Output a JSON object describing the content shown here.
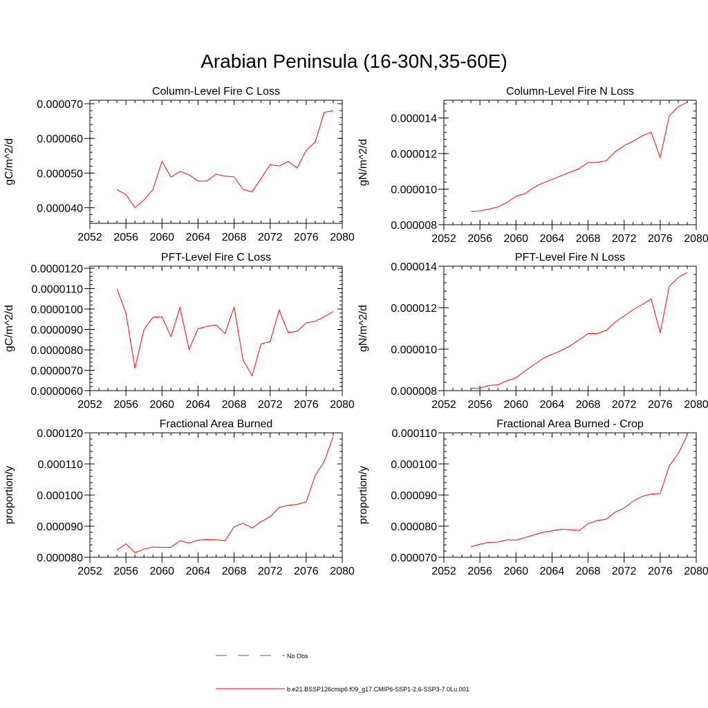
{
  "page": {
    "title": "Arabian Peninsula (16-30N,35-60E)"
  },
  "style": {
    "series_color": "#ff0000",
    "obs_color": "#5a5aa8",
    "axis_color": "#000000"
  },
  "legend": {
    "obs_label": "No Obs",
    "model_label": "b.e21.BSSP126cmip6.f09_g17.CMIP6-SSP1-2.6-SSP3-7.0Lu.001"
  },
  "chart_data": [
    {
      "type": "line",
      "title": "Column-Level Fire C Loss",
      "ylabel": "gC/m^2/d",
      "xlabel": "",
      "xlim": [
        2052,
        2080
      ],
      "ylim": [
        3.55e-05,
        7.1e-05
      ],
      "xticks": [
        2052,
        2056,
        2060,
        2064,
        2068,
        2072,
        2076,
        2080
      ],
      "xtick_labels": [
        "2052",
        "2056",
        "2060",
        "2064",
        "2068",
        "2072",
        "2076",
        "2080"
      ],
      "yticks": [
        4e-05,
        5e-05,
        6e-05,
        7e-05
      ],
      "ytick_labels": [
        "0.000040",
        "0.000050",
        "0.000060",
        "0.000070"
      ],
      "x": [
        2055,
        2056,
        2057,
        2058,
        2059,
        2060,
        2061,
        2062,
        2063,
        2064,
        2065,
        2066,
        2067,
        2068,
        2069,
        2070,
        2071,
        2072,
        2073,
        2074,
        2075,
        2076,
        2077,
        2078,
        2079
      ],
      "values": [
        4.52e-05,
        4.38e-05,
        4e-05,
        4.22e-05,
        4.53e-05,
        5.34e-05,
        4.88e-05,
        5.05e-05,
        4.95e-05,
        4.77e-05,
        4.77e-05,
        4.97e-05,
        4.91e-05,
        4.89e-05,
        4.53e-05,
        4.46e-05,
        4.85e-05,
        5.24e-05,
        5.2e-05,
        5.33e-05,
        5.15e-05,
        5.65e-05,
        5.9e-05,
        6.75e-05,
        6.8e-05
      ]
    },
    {
      "type": "line",
      "title": "Column-Level Fire N Loss",
      "ylabel": "gN/m^2/d",
      "xlabel": "",
      "xlim": [
        2052,
        2080
      ],
      "ylim": [
        8e-06,
        1.5e-05
      ],
      "xticks": [
        2052,
        2056,
        2060,
        2064,
        2068,
        2072,
        2076,
        2080
      ],
      "xtick_labels": [
        "2052",
        "2056",
        "2060",
        "2064",
        "2068",
        "2072",
        "2076",
        "2080"
      ],
      "yticks": [
        8e-06,
        1e-05,
        1.2e-05,
        1.4e-05
      ],
      "ytick_labels": [
        "0.000008",
        "0.000010",
        "0.000012",
        "0.000014"
      ],
      "x": [
        2055,
        2056,
        2057,
        2058,
        2059,
        2060,
        2061,
        2062,
        2063,
        2064,
        2065,
        2066,
        2067,
        2068,
        2069,
        2070,
        2071,
        2072,
        2073,
        2074,
        2075,
        2076,
        2077,
        2078,
        2079
      ],
      "values": [
        8.75e-06,
        8.78e-06,
        8.88e-06,
        9e-06,
        9.25e-06,
        9.6e-06,
        9.75e-06,
        1.01e-05,
        1.035e-05,
        1.055e-05,
        1.075e-05,
        1.095e-05,
        1.115e-05,
        1.15e-05,
        1.15e-05,
        1.16e-05,
        1.21e-05,
        1.245e-05,
        1.27e-05,
        1.3e-05,
        1.32e-05,
        1.178e-05,
        1.41e-05,
        1.465e-05,
        1.488e-05
      ]
    },
    {
      "type": "line",
      "title": "PFT-Level Fire C Loss",
      "ylabel": "gC/m^2/d",
      "xlabel": "",
      "xlim": [
        2052,
        2080
      ],
      "ylim": [
        6e-06,
        1.21e-05
      ],
      "xticks": [
        2052,
        2056,
        2060,
        2064,
        2068,
        2072,
        2076,
        2080
      ],
      "xtick_labels": [
        "2052",
        "2056",
        "2060",
        "2064",
        "2068",
        "2072",
        "2076",
        "2080"
      ],
      "yticks": [
        6e-06,
        7e-06,
        8e-06,
        9e-06,
        1e-05,
        1.1e-05,
        1.2e-05
      ],
      "ytick_labels": [
        "0.0000060",
        "0.0000070",
        "0.0000080",
        "0.0000090",
        "0.0000100",
        "0.0000110",
        "0.0000120"
      ],
      "x": [
        2055,
        2056,
        2057,
        2058,
        2059,
        2060,
        2061,
        2062,
        2063,
        2064,
        2065,
        2066,
        2067,
        2068,
        2069,
        2070,
        2071,
        2072,
        2073,
        2074,
        2075,
        2076,
        2077,
        2078,
        2079
      ],
      "values": [
        1.1e-05,
        9.8e-06,
        7.1e-06,
        9e-06,
        9.6e-06,
        9.62e-06,
        8.64e-06,
        1.008e-05,
        8.02e-06,
        9.03e-06,
        9.15e-06,
        9.22e-06,
        8.8e-06,
        1.01e-05,
        7.5e-06,
        6.73e-06,
        8.3e-06,
        8.4e-06,
        9.95e-06,
        8.85e-06,
        8.91e-06,
        9.32e-06,
        9.4e-06,
        9.62e-06,
        9.88e-06
      ]
    },
    {
      "type": "line",
      "title": "PFT-Level Fire N Loss",
      "ylabel": "gN/m^2/d",
      "xlabel": "",
      "xlim": [
        2052,
        2080
      ],
      "ylim": [
        8e-06,
        1.4e-05
      ],
      "xticks": [
        2052,
        2056,
        2060,
        2064,
        2068,
        2072,
        2076,
        2080
      ],
      "xtick_labels": [
        "2052",
        "2056",
        "2060",
        "2064",
        "2068",
        "2072",
        "2076",
        "2080"
      ],
      "yticks": [
        8e-06,
        1e-05,
        1.2e-05,
        1.4e-05
      ],
      "ytick_labels": [
        "0.000008",
        "0.000010",
        "0.000012",
        "0.000014"
      ],
      "x": [
        2055,
        2056,
        2057,
        2058,
        2059,
        2060,
        2061,
        2062,
        2063,
        2064,
        2065,
        2066,
        2067,
        2068,
        2069,
        2070,
        2071,
        2072,
        2073,
        2074,
        2075,
        2076,
        2077,
        2078,
        2079
      ],
      "values": [
        8.12e-06,
        8.12e-06,
        8.25e-06,
        8.28e-06,
        8.48e-06,
        8.62e-06,
        8.95e-06,
        9.25e-06,
        9.55e-06,
        9.75e-06,
        9.93e-06,
        1.015e-05,
        1.045e-05,
        1.075e-05,
        1.075e-05,
        1.09e-05,
        1.13e-05,
        1.16e-05,
        1.19e-05,
        1.215e-05,
        1.242e-05,
        1.078e-05,
        1.302e-05,
        1.345e-05,
        1.37e-05
      ]
    },
    {
      "type": "line",
      "title": "Fractional Area Burned",
      "ylabel": "proportion/y",
      "xlabel": "",
      "xlim": [
        2052,
        2080
      ],
      "ylim": [
        8e-05,
        0.00012
      ],
      "xticks": [
        2052,
        2056,
        2060,
        2064,
        2068,
        2072,
        2076,
        2080
      ],
      "xtick_labels": [
        "2052",
        "2056",
        "2060",
        "2064",
        "2068",
        "2072",
        "2076",
        "2080"
      ],
      "yticks": [
        8e-05,
        9e-05,
        0.0001,
        0.00011,
        0.00012
      ],
      "ytick_labels": [
        "0.000080",
        "0.000090",
        "0.000100",
        "0.000110",
        "0.000120"
      ],
      "x": [
        2055,
        2056,
        2057,
        2058,
        2059,
        2060,
        2061,
        2062,
        2063,
        2064,
        2065,
        2066,
        2067,
        2068,
        2069,
        2070,
        2071,
        2072,
        2073,
        2074,
        2075,
        2076,
        2077,
        2078,
        2079
      ],
      "values": [
        8.23e-05,
        8.43e-05,
        8.15e-05,
        8.26e-05,
        8.33e-05,
        8.32e-05,
        8.32e-05,
        8.53e-05,
        8.46e-05,
        8.55e-05,
        8.57e-05,
        8.56e-05,
        8.53e-05,
        8.98e-05,
        9.09e-05,
        8.94e-05,
        9.15e-05,
        9.3e-05,
        9.6e-05,
        9.67e-05,
        9.7e-05,
        9.78e-05,
        0.0001063,
        0.0001108,
        0.0001188
      ]
    },
    {
      "type": "line",
      "title": "Fractional Area Burned - Crop",
      "ylabel": "proportion/y",
      "xlabel": "",
      "xlim": [
        2052,
        2080
      ],
      "ylim": [
        7e-05,
        0.00011
      ],
      "xticks": [
        2052,
        2056,
        2060,
        2064,
        2068,
        2072,
        2076,
        2080
      ],
      "xtick_labels": [
        "2052",
        "2056",
        "2060",
        "2064",
        "2068",
        "2072",
        "2076",
        "2080"
      ],
      "yticks": [
        7e-05,
        8e-05,
        9e-05,
        0.0001,
        0.00011
      ],
      "ytick_labels": [
        "0.000070",
        "0.000080",
        "0.000090",
        "0.000100",
        "0.000110"
      ],
      "x": [
        2055,
        2056,
        2057,
        2058,
        2059,
        2060,
        2061,
        2062,
        2063,
        2064,
        2065,
        2066,
        2067,
        2068,
        2069,
        2070,
        2071,
        2072,
        2073,
        2074,
        2075,
        2076,
        2077,
        2078,
        2079
      ],
      "values": [
        7.33e-05,
        7.42e-05,
        7.48e-05,
        7.49e-05,
        7.56e-05,
        7.55e-05,
        7.63e-05,
        7.72e-05,
        7.8e-05,
        7.85e-05,
        7.9e-05,
        7.89e-05,
        7.86e-05,
        8.08e-05,
        8.18e-05,
        8.22e-05,
        8.45e-05,
        8.58e-05,
        8.8e-05,
        8.96e-05,
        9.03e-05,
        9.05e-05,
        9.93e-05,
        0.0001033,
        0.0001093
      ]
    }
  ]
}
